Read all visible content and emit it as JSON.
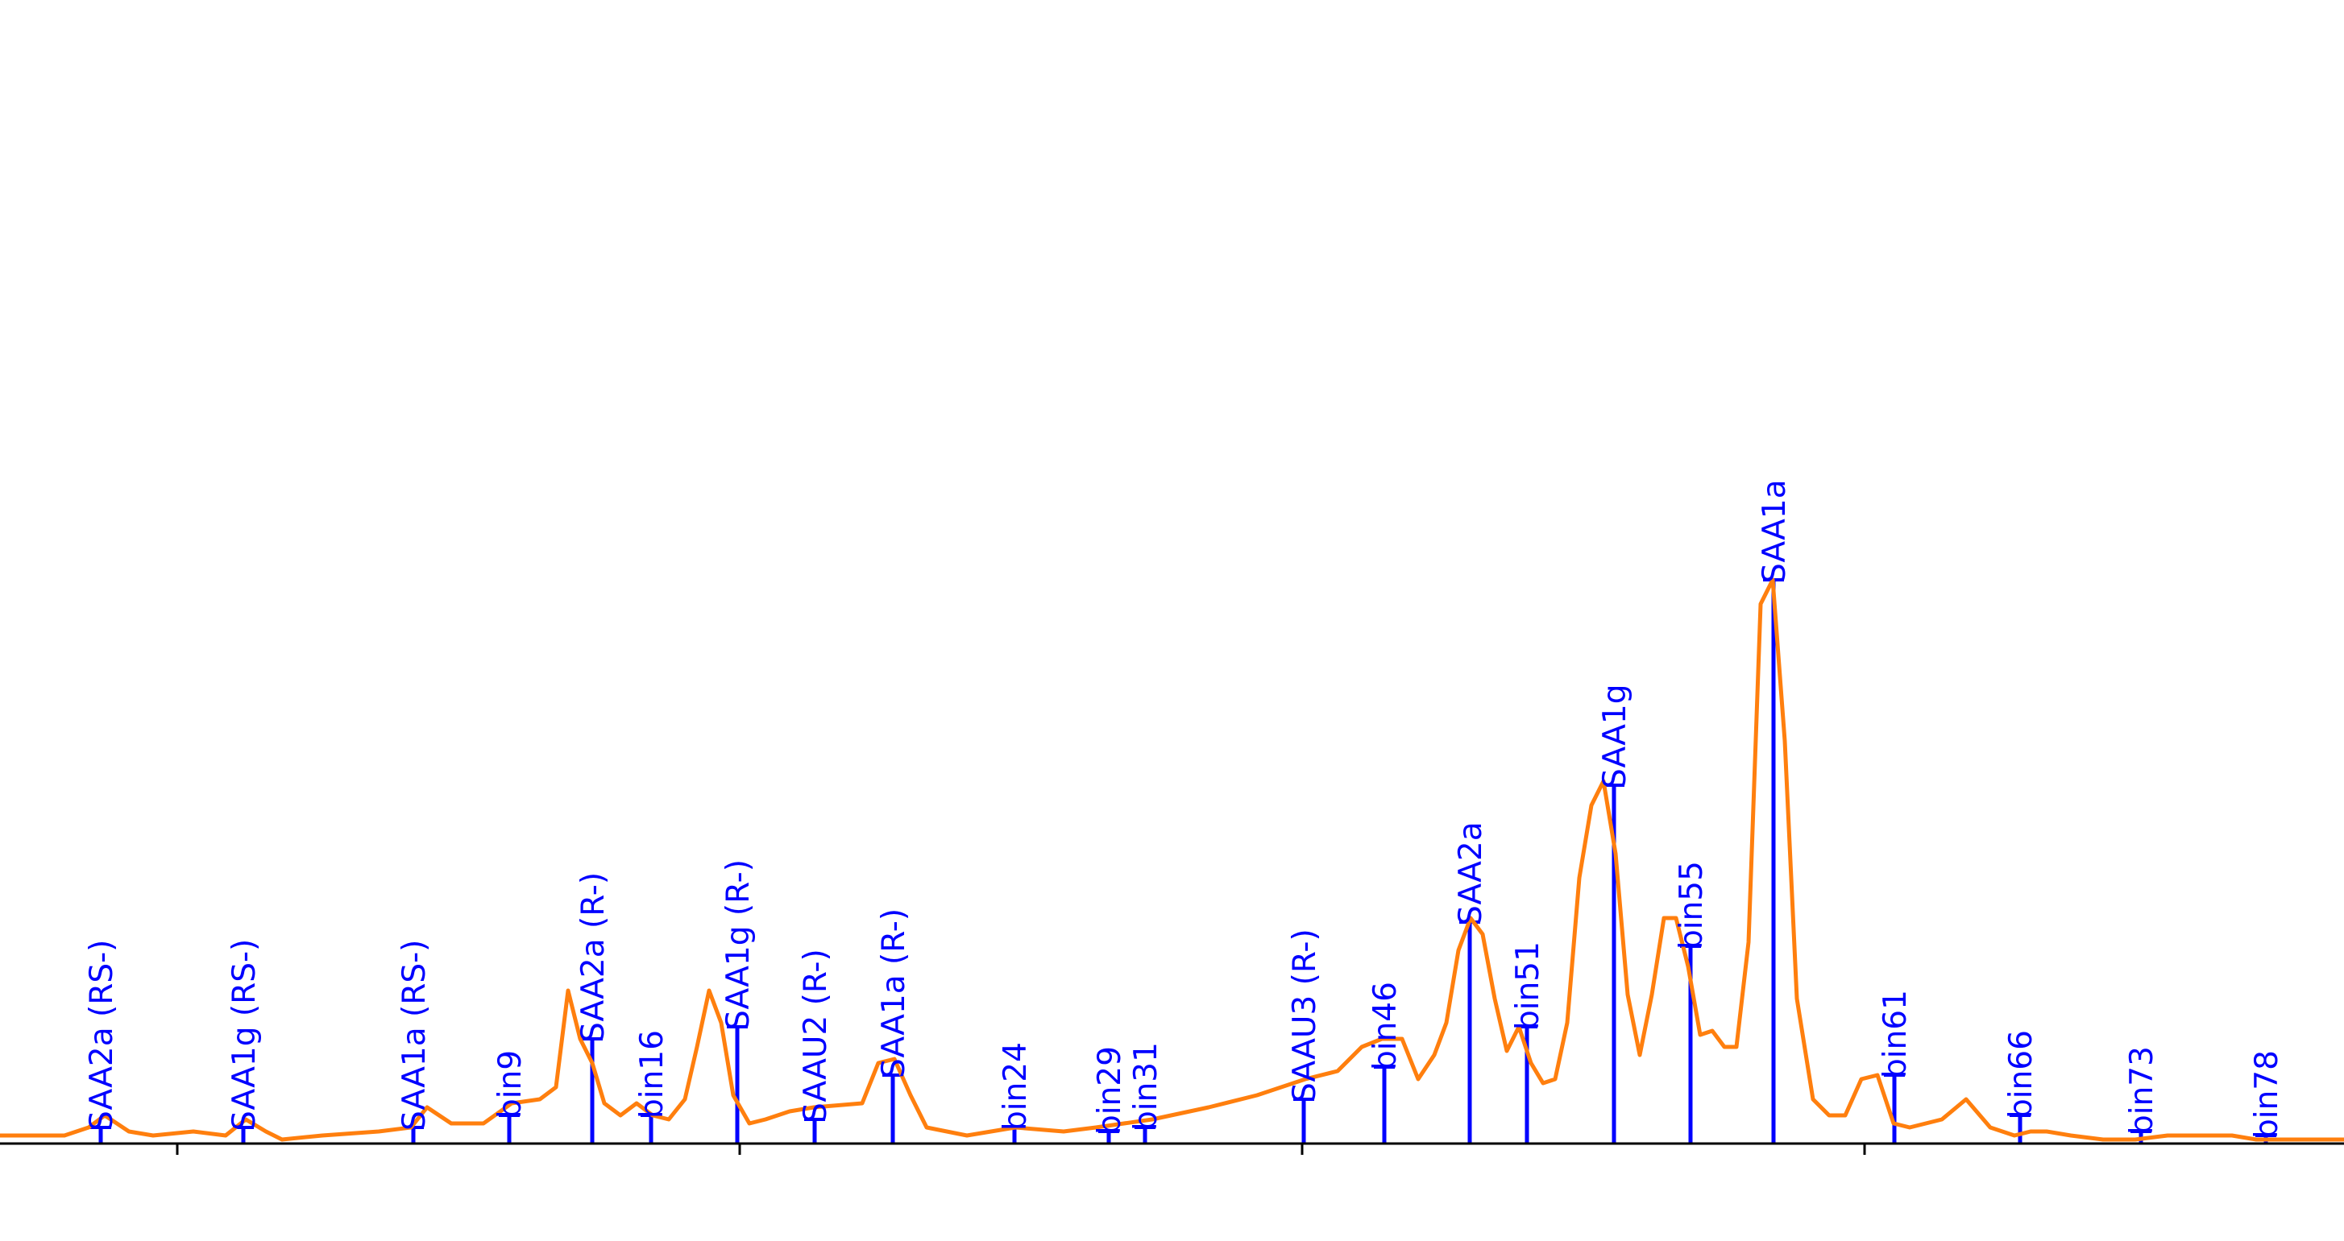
{
  "chart_data": {
    "type": "line",
    "title": "",
    "xlabel": "",
    "ylabel": "",
    "xlim": [
      0,
      29.09
    ],
    "ylim": [
      0,
      14.2
    ],
    "grid": false,
    "legend": "none",
    "colors": {
      "trace": "#ff7f0e",
      "peaks": "#0000ff",
      "axis": "#000000"
    },
    "x_ticks": [
      2.2,
      9.18,
      16.16,
      23.14
    ],
    "x_tick_labels": [
      "",
      "",
      "",
      ""
    ],
    "series": [
      {
        "x": [
          0.0,
          0.8,
          1.1,
          1.3,
          1.6,
          1.9,
          2.4,
          2.8,
          3.05,
          3.3,
          3.5,
          4.0,
          4.7,
          5.1,
          5.3,
          5.6,
          6.0,
          6.35,
          6.7,
          6.9,
          7.05,
          7.2,
          7.35,
          7.5,
          7.7,
          7.9,
          8.1,
          8.3,
          8.5,
          8.65,
          8.8,
          8.95,
          9.1,
          9.3,
          9.5,
          9.8,
          10.1,
          10.7,
          10.9,
          11.1,
          11.3,
          11.5,
          12.0,
          12.6,
          13.2,
          13.6,
          14.3,
          15.0,
          15.6,
          16.2,
          16.6,
          16.9,
          17.15,
          17.4,
          17.6,
          17.8,
          17.95,
          18.1,
          18.25,
          18.4,
          18.55,
          18.7,
          18.85,
          19.0,
          19.15,
          19.3,
          19.45,
          19.6,
          19.75,
          19.9,
          20.05,
          20.2,
          20.35,
          20.5,
          20.65,
          20.8,
          20.95,
          21.1,
          21.25,
          21.4,
          21.55,
          21.7,
          21.85,
          22.0,
          22.15,
          22.3,
          22.5,
          22.7,
          22.9,
          23.1,
          23.3,
          23.5,
          23.7,
          23.9,
          24.1,
          24.4,
          24.7,
          25.0,
          25.2,
          25.4,
          25.7,
          26.1,
          26.5,
          26.9,
          27.3,
          27.7,
          28.0,
          28.2,
          28.5,
          29.09
        ],
        "y": [
          0.1,
          0.1,
          0.2,
          0.35,
          0.15,
          0.1,
          0.15,
          0.1,
          0.3,
          0.15,
          0.05,
          0.1,
          0.15,
          0.2,
          0.45,
          0.25,
          0.25,
          0.5,
          0.55,
          0.7,
          1.9,
          1.3,
          1.0,
          0.5,
          0.35,
          0.5,
          0.35,
          0.3,
          0.55,
          1.2,
          1.9,
          1.5,
          0.6,
          0.25,
          0.3,
          0.4,
          0.45,
          0.5,
          1.0,
          1.05,
          0.6,
          0.2,
          0.1,
          0.2,
          0.15,
          0.2,
          0.3,
          0.45,
          0.6,
          0.8,
          0.9,
          1.2,
          1.3,
          1.3,
          0.8,
          1.1,
          1.5,
          2.4,
          2.8,
          2.6,
          1.8,
          1.15,
          1.45,
          1.0,
          0.75,
          0.8,
          1.5,
          3.3,
          4.2,
          4.5,
          3.6,
          1.85,
          1.1,
          1.85,
          2.8,
          2.8,
          2.2,
          1.35,
          1.4,
          1.2,
          1.2,
          2.5,
          6.7,
          7.0,
          5.0,
          1.8,
          0.55,
          0.35,
          0.35,
          0.8,
          0.85,
          0.25,
          0.2,
          0.25,
          0.3,
          0.55,
          0.2,
          0.1,
          0.15,
          0.15,
          0.1,
          0.05,
          0.05,
          0.1,
          0.1,
          0.1,
          0.05,
          0.05,
          0.05,
          0.05
        ]
      }
    ],
    "peaks": [
      {
        "label": "SAA2a (RS-)",
        "x": 1.25,
        "y": 0.2
      },
      {
        "label": "SAA1g (RS-)",
        "x": 3.02,
        "y": 0.2
      },
      {
        "label": "SAA1a (RS-)",
        "x": 5.13,
        "y": 0.2
      },
      {
        "label": "bin9",
        "x": 6.32,
        "y": 0.35
      },
      {
        "label": "SAA2a (R-)",
        "x": 7.35,
        "y": 1.3
      },
      {
        "label": "bin16",
        "x": 8.08,
        "y": 0.35
      },
      {
        "label": "SAA1g (R-)",
        "x": 9.15,
        "y": 1.45
      },
      {
        "label": "SAAU2 (R-)",
        "x": 10.11,
        "y": 0.3
      },
      {
        "label": "SAA1a (R-)",
        "x": 11.08,
        "y": 0.85
      },
      {
        "label": "bin24",
        "x": 12.59,
        "y": 0.2
      },
      {
        "label": "bin29",
        "x": 13.76,
        "y": 0.15
      },
      {
        "label": "bin31",
        "x": 14.21,
        "y": 0.2
      },
      {
        "label": "SAAU3 (R-)",
        "x": 16.18,
        "y": 0.55
      },
      {
        "label": "bin46",
        "x": 17.18,
        "y": 0.95
      },
      {
        "label": "SAA2a",
        "x": 18.24,
        "y": 2.75
      },
      {
        "label": "bin51",
        "x": 18.95,
        "y": 1.45
      },
      {
        "label": "SAA1g",
        "x": 20.03,
        "y": 4.45
      },
      {
        "label": "bin55",
        "x": 20.98,
        "y": 2.45
      },
      {
        "label": "SAA1a",
        "x": 22.01,
        "y": 7.0
      },
      {
        "label": "bin61",
        "x": 23.51,
        "y": 0.85
      },
      {
        "label": "bin66",
        "x": 25.07,
        "y": 0.35
      },
      {
        "label": "bin73",
        "x": 26.57,
        "y": 0.15
      },
      {
        "label": "bin78",
        "x": 28.12,
        "y": 0.1
      }
    ]
  }
}
